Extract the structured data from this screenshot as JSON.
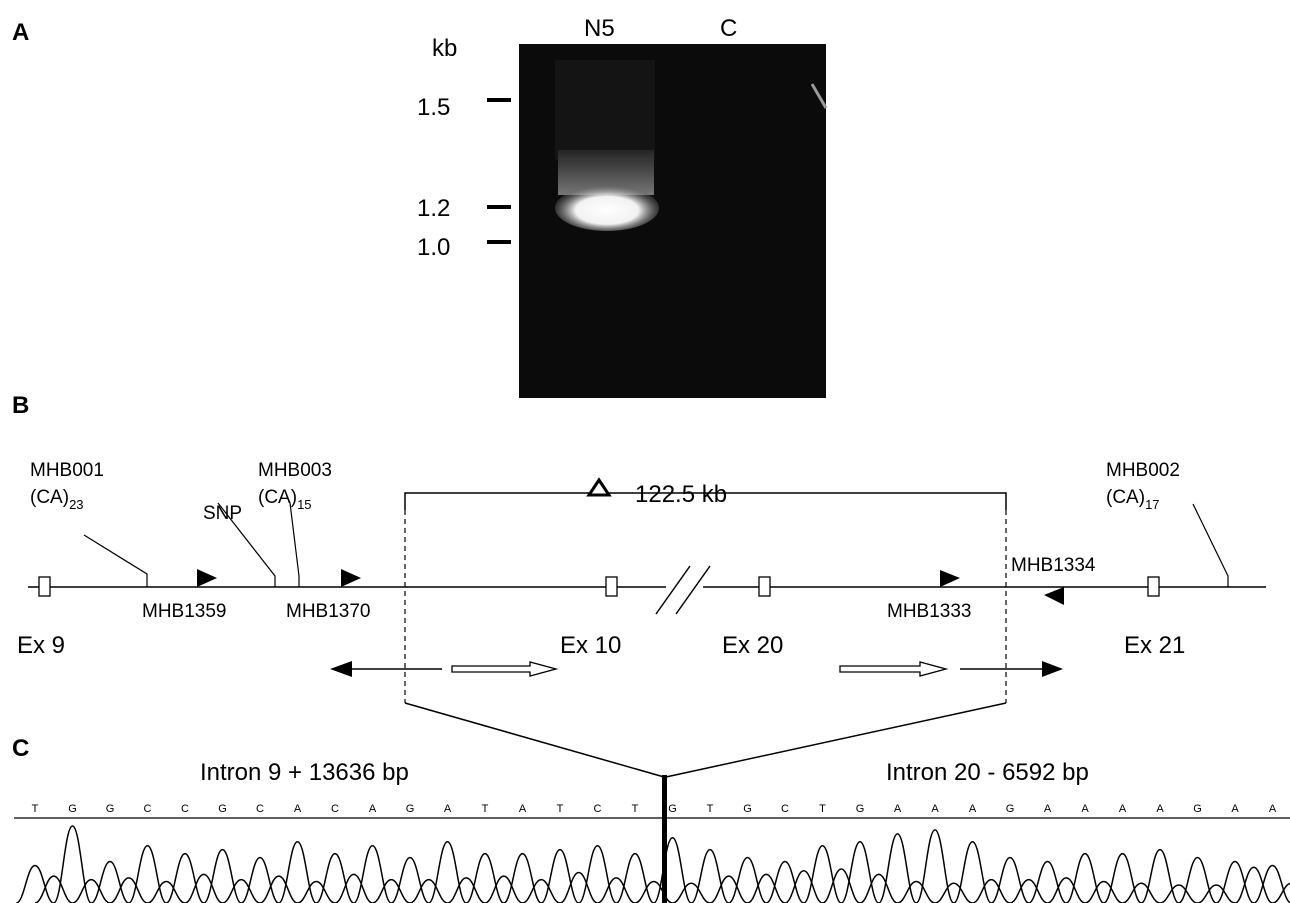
{
  "panel_a": {
    "letter": "A",
    "unit": "kb",
    "markers": [
      "1.5",
      "1.2",
      "1.0"
    ],
    "lanes": [
      "N5",
      "C"
    ]
  },
  "panel_b": {
    "letter": "B",
    "deletion_label": "122.5 kb",
    "labels": {
      "mhb001": "MHB001",
      "mhb001_repeat": "(CA)",
      "mhb001_count": "23",
      "snp": "SNP",
      "mhb003": "MHB003",
      "mhb003_repeat": "(CA)",
      "mhb003_count": "15",
      "mhb002": "MHB002",
      "mhb002_repeat": "(CA)",
      "mhb002_count": "17",
      "mhb1359": "MHB1359",
      "mhb1370": "MHB1370",
      "mhb1333": "MHB1333",
      "mhb1334": "MHB1334"
    },
    "exons": [
      "Ex 9",
      "Ex 10",
      "Ex 20",
      "Ex 21"
    ]
  },
  "panel_c": {
    "letter": "C",
    "left_label": "Intron 9 + 13636 bp",
    "right_label": "Intron 20 - 6592 bp",
    "bases": [
      "T",
      "G",
      "G",
      "C",
      "C",
      "G",
      "C",
      "A",
      "C",
      "A",
      "G",
      "A",
      "T",
      "A",
      "T",
      "C",
      "T",
      "G",
      "T",
      "G",
      "C",
      "T",
      "G",
      "A",
      "A",
      "A",
      "G",
      "A",
      "A",
      "A",
      "A",
      "G",
      "A",
      "A"
    ]
  }
}
